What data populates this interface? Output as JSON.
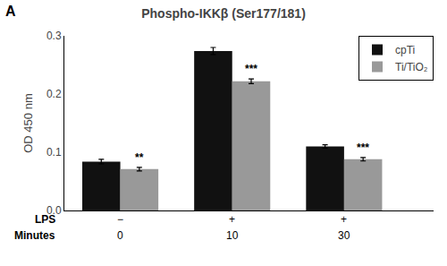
{
  "chart_data": {
    "type": "bar",
    "title": "Phospho-IKKβ (Ser177/181)",
    "annotations": [
      "A"
    ],
    "ylabel": "OD 450 nm",
    "category_headers": [
      "LPS",
      "Minutes"
    ],
    "categories": [
      [
        "−",
        "0"
      ],
      [
        "+",
        "10"
      ],
      [
        "+",
        "30"
      ]
    ],
    "series": [
      {
        "name": "cpTi",
        "color": "#111111",
        "values": [
          0.084,
          0.274,
          0.11
        ],
        "errors": [
          0.004,
          0.006,
          0.003
        ]
      },
      {
        "name": "Ti/TiO₂",
        "color": "#999999",
        "values": [
          0.071,
          0.222,
          0.088
        ],
        "errors": [
          0.003,
          0.004,
          0.003
        ],
        "significance": [
          "**",
          "***",
          "***"
        ]
      }
    ],
    "ylim": [
      0,
      0.3
    ],
    "yticks": [
      {
        "value": 0,
        "label": "0.0"
      },
      0.1,
      0.2,
      0.3
    ],
    "grid": false,
    "legend": "upper right"
  }
}
